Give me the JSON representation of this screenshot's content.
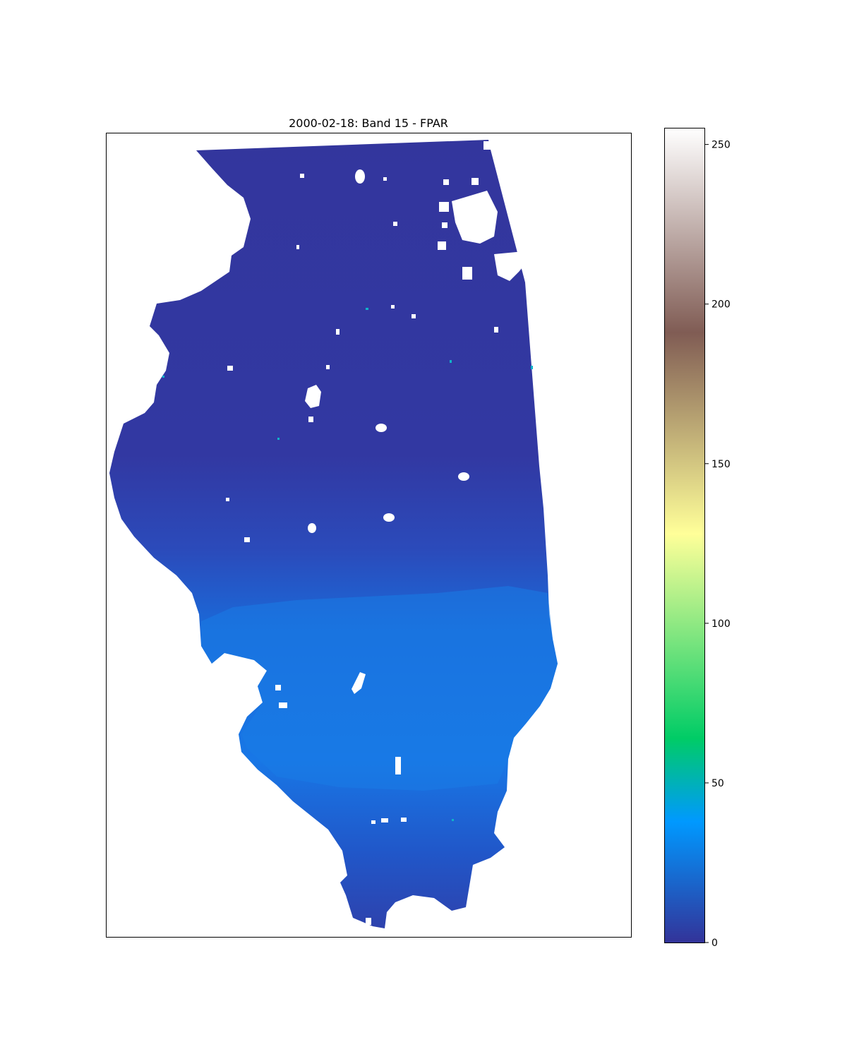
{
  "chart_data": {
    "type": "heatmap",
    "title": "2000-02-18: Band 15 - FPAR",
    "xlabel": "",
    "ylabel": "",
    "grid": false,
    "axis_ticks": false,
    "colormap": "terrain",
    "colorbar": {
      "range": [
        0,
        255
      ],
      "ticks": [
        0,
        50,
        100,
        150,
        200,
        250
      ],
      "stops": [
        {
          "value": 0,
          "color": "#333399"
        },
        {
          "value": 38,
          "color": "#0099ff"
        },
        {
          "value": 64,
          "color": "#00cc66"
        },
        {
          "value": 128,
          "color": "#ffff99"
        },
        {
          "value": 191,
          "color": "#805c54"
        },
        {
          "value": 255,
          "color": "#ffffff"
        }
      ]
    },
    "no_data_color": "#ffffff",
    "regions": [
      {
        "name": "north",
        "approx_value": 3
      },
      {
        "name": "central",
        "approx_value": 18
      },
      {
        "name": "southern-central",
        "approx_value": 35
      },
      {
        "name": "far-south",
        "approx_value": 15
      }
    ]
  }
}
